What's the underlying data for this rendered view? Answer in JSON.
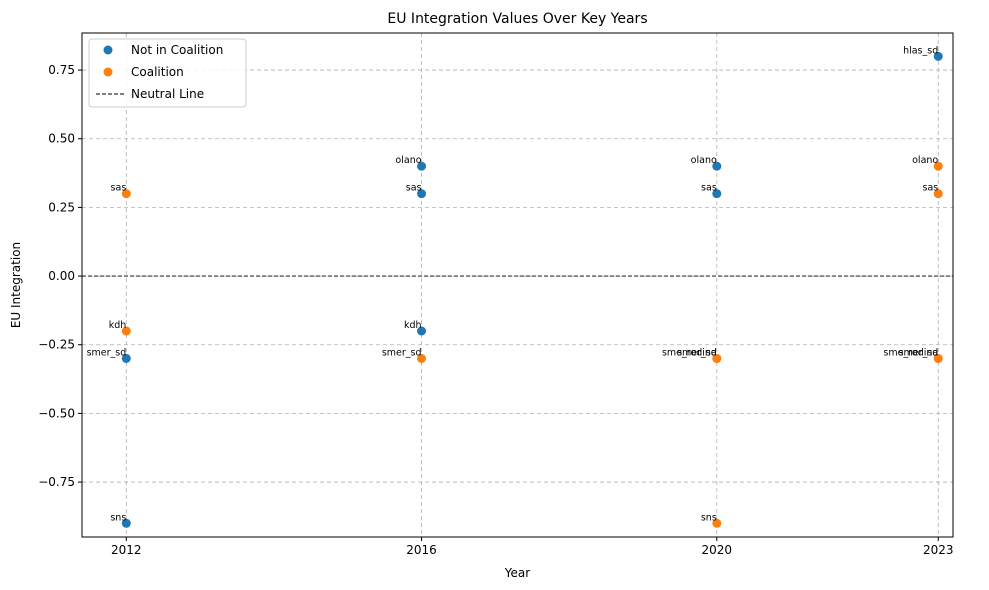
{
  "chart_data": {
    "type": "scatter",
    "title": "EU Integration Values Over Key Years",
    "xlabel": "Year",
    "ylabel": "EU Integration",
    "x_ticks": [
      2012,
      2016,
      2020,
      2023
    ],
    "y_ticks": [
      -0.75,
      -0.5,
      -0.25,
      0.0,
      0.25,
      0.5,
      0.75
    ],
    "y_tick_labels": [
      "−0.75",
      "−0.50",
      "−0.25",
      "0.00",
      "0.25",
      "0.50",
      "0.75"
    ],
    "xlim": [
      2011.4,
      2023.2
    ],
    "ylim": [
      -0.95,
      0.885
    ],
    "grid": true,
    "legend_position": "top-left",
    "neutral_line": {
      "name": "Neutral Line",
      "y": 0,
      "color": "#000000"
    },
    "series": [
      {
        "name": "Not in Coalition",
        "color": "#1f77b4",
        "points": [
          {
            "x": 2012,
            "y": -0.3,
            "label": "smer_sd"
          },
          {
            "x": 2012,
            "y": -0.9,
            "label": "sns"
          },
          {
            "x": 2016,
            "y": 0.4,
            "label": "olano"
          },
          {
            "x": 2016,
            "y": 0.3,
            "label": "sas"
          },
          {
            "x": 2016,
            "y": -0.2,
            "label": "kdh"
          },
          {
            "x": 2020,
            "y": 0.4,
            "label": "olano"
          },
          {
            "x": 2020,
            "y": 0.3,
            "label": "sas"
          },
          {
            "x": 2023,
            "y": 0.8,
            "label": "hlas_sd"
          }
        ]
      },
      {
        "name": "Coalition",
        "color": "#ff7f0e",
        "points": [
          {
            "x": 2012,
            "y": 0.3,
            "label": "sas"
          },
          {
            "x": 2012,
            "y": -0.2,
            "label": "kdh"
          },
          {
            "x": 2016,
            "y": -0.3,
            "label": "smer_sd"
          },
          {
            "x": 2020,
            "y": -0.3,
            "label": "smer_sd"
          },
          {
            "x": 2020,
            "y": -0.3,
            "label": "sme_rodina"
          },
          {
            "x": 2020,
            "y": -0.9,
            "label": "sns"
          },
          {
            "x": 2023,
            "y": 0.4,
            "label": "olano"
          },
          {
            "x": 2023,
            "y": 0.3,
            "label": "sas"
          },
          {
            "x": 2023,
            "y": -0.3,
            "label": "smer_sd"
          },
          {
            "x": 2023,
            "y": -0.3,
            "label": "sme_rodina"
          }
        ]
      }
    ]
  }
}
